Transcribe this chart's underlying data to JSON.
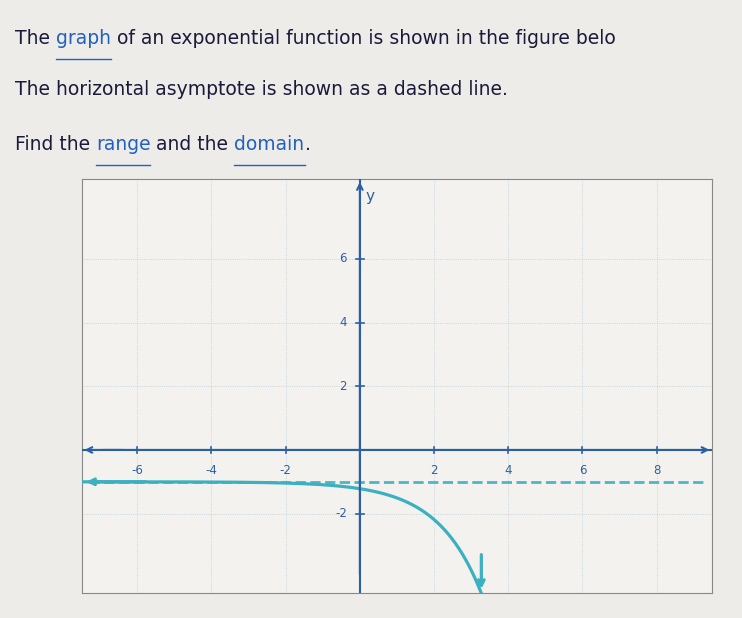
{
  "xlim": [
    -7.5,
    9.5
  ],
  "ylim": [
    -4.5,
    8.5
  ],
  "xticks": [
    -6,
    -4,
    -2,
    2,
    4,
    6,
    8
  ],
  "yticks": [
    -2,
    2,
    4,
    6
  ],
  "asymptote_y": -1,
  "curve_k": 0.85,
  "curve_x0": 1.8,
  "curve_color": "#3ab0c0",
  "axis_color": "#2b5fa5",
  "grid_color": "#b8ccd8",
  "background_color": "#eeece8",
  "plot_bg_color": "#f4f2ee",
  "text_color": "#1a1a3a",
  "link_color": "#2060c0",
  "line1_parts": [
    [
      "The ",
      false
    ],
    [
      "graph",
      true
    ],
    [
      " of an exponential function is shown in the figure belo",
      false
    ]
  ],
  "line2_parts": [
    [
      "The horizontal asymptote is shown as a dashed line.",
      false
    ]
  ],
  "line3_parts": [
    [
      "Find the ",
      false
    ],
    [
      "range",
      true
    ],
    [
      " and the ",
      false
    ],
    [
      "domain",
      true
    ],
    [
      ".",
      false
    ]
  ],
  "fontsize": 13.5
}
